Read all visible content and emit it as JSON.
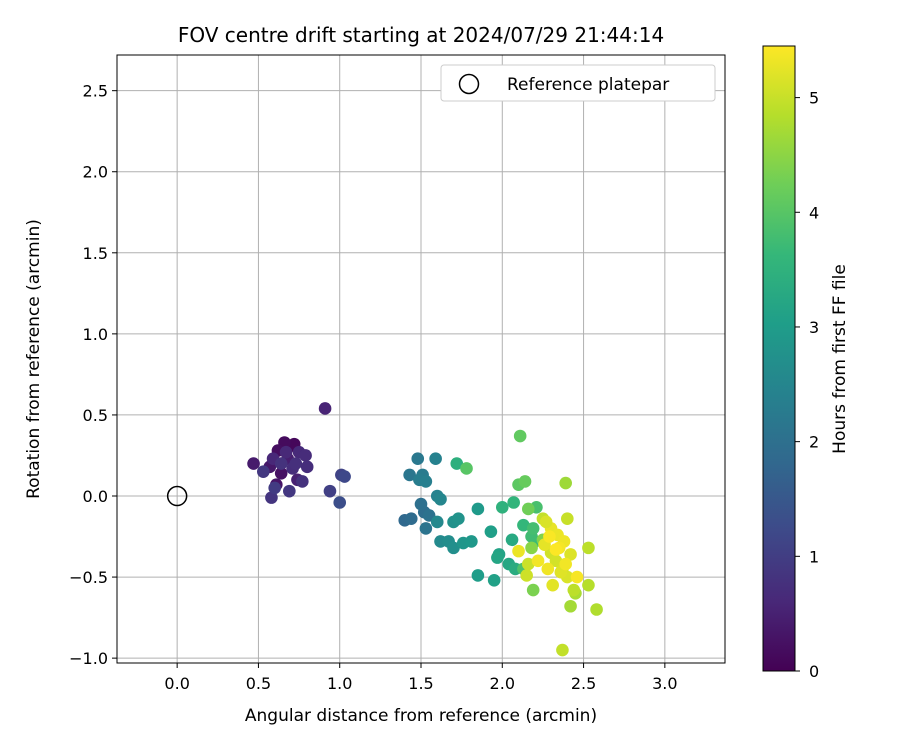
{
  "chart_data": {
    "type": "scatter",
    "title": "FOV centre drift starting at 2024/07/29 21:44:14",
    "xlabel": "Angular distance from reference (arcmin)",
    "ylabel": "Rotation from reference (arcmin)",
    "xlim": [
      -0.37,
      3.37
    ],
    "ylim": [
      -1.03,
      2.72
    ],
    "xticks": [
      0.0,
      0.5,
      1.0,
      1.5,
      2.0,
      2.5,
      3.0
    ],
    "xtick_labels": [
      "0.0",
      "0.5",
      "1.0",
      "1.5",
      "2.0",
      "2.5",
      "3.0"
    ],
    "yticks": [
      -1.0,
      -0.5,
      0.0,
      0.5,
      1.0,
      1.5,
      2.0,
      2.5
    ],
    "ytick_labels": [
      "−1.0",
      "−0.5",
      "0.0",
      "0.5",
      "1.0",
      "1.5",
      "2.0",
      "2.5"
    ],
    "grid": true,
    "legend": {
      "position": "top-right",
      "entries": [
        "Reference platepar"
      ]
    },
    "reference_point": {
      "x": 0.0,
      "y": 0.0
    },
    "colorbar": {
      "label": "Hours from first FF file",
      "range": [
        0,
        5.45
      ],
      "ticks": [
        0,
        1,
        2,
        3,
        4,
        5
      ],
      "tick_labels": [
        "0",
        "1",
        "2",
        "3",
        "4",
        "5"
      ],
      "colormap": "viridis"
    },
    "colormap_stops": [
      "#440154",
      "#482878",
      "#3e4989",
      "#31688e",
      "#26828e",
      "#1f9e89",
      "#35b779",
      "#6ece58",
      "#b5de2b",
      "#fde725"
    ],
    "points": [
      {
        "x": 0.7,
        "y": 0.31,
        "h": 0.05
      },
      {
        "x": 0.72,
        "y": 0.32,
        "h": 0.1
      },
      {
        "x": 0.66,
        "y": 0.33,
        "h": 0.15
      },
      {
        "x": 0.62,
        "y": 0.28,
        "h": 0.2
      },
      {
        "x": 0.64,
        "y": 0.14,
        "h": 0.25
      },
      {
        "x": 0.61,
        "y": 0.07,
        "h": 0.3
      },
      {
        "x": 0.57,
        "y": 0.18,
        "h": 0.35
      },
      {
        "x": 0.47,
        "y": 0.2,
        "h": 0.4
      },
      {
        "x": 0.68,
        "y": 0.23,
        "h": 0.45
      },
      {
        "x": 0.74,
        "y": 0.1,
        "h": 0.5
      },
      {
        "x": 0.91,
        "y": 0.54,
        "h": 0.55
      },
      {
        "x": 0.59,
        "y": 0.23,
        "h": 0.6
      },
      {
        "x": 0.67,
        "y": 0.27,
        "h": 0.62
      },
      {
        "x": 0.75,
        "y": 0.27,
        "h": 0.65
      },
      {
        "x": 0.79,
        "y": 0.25,
        "h": 0.68
      },
      {
        "x": 0.8,
        "y": 0.18,
        "h": 0.7
      },
      {
        "x": 0.71,
        "y": 0.17,
        "h": 0.72
      },
      {
        "x": 0.73,
        "y": 0.2,
        "h": 0.75
      },
      {
        "x": 0.77,
        "y": 0.09,
        "h": 0.78
      },
      {
        "x": 0.64,
        "y": 0.2,
        "h": 0.8
      },
      {
        "x": 0.58,
        "y": -0.01,
        "h": 0.85
      },
      {
        "x": 0.69,
        "y": 0.03,
        "h": 0.88
      },
      {
        "x": 0.53,
        "y": 0.15,
        "h": 0.9
      },
      {
        "x": 0.6,
        "y": 0.05,
        "h": 0.95
      },
      {
        "x": 0.94,
        "y": 0.03,
        "h": 1.05
      },
      {
        "x": 1.01,
        "y": 0.13,
        "h": 1.1
      },
      {
        "x": 1.03,
        "y": 0.12,
        "h": 1.2
      },
      {
        "x": 1.0,
        "y": -0.04,
        "h": 1.3
      },
      {
        "x": 1.4,
        "y": -0.15,
        "h": 1.85
      },
      {
        "x": 1.44,
        "y": -0.14,
        "h": 1.9
      },
      {
        "x": 1.52,
        "y": -0.1,
        "h": 1.95
      },
      {
        "x": 1.5,
        "y": -0.05,
        "h": 2.0
      },
      {
        "x": 1.55,
        "y": -0.12,
        "h": 2.05
      },
      {
        "x": 1.53,
        "y": -0.2,
        "h": 2.1
      },
      {
        "x": 1.43,
        "y": 0.13,
        "h": 2.15
      },
      {
        "x": 1.48,
        "y": 0.23,
        "h": 2.2
      },
      {
        "x": 1.51,
        "y": 0.13,
        "h": 2.25
      },
      {
        "x": 1.49,
        "y": 0.1,
        "h": 2.3
      },
      {
        "x": 1.53,
        "y": 0.09,
        "h": 2.35
      },
      {
        "x": 1.59,
        "y": 0.23,
        "h": 2.4
      },
      {
        "x": 1.6,
        "y": 0.0,
        "h": 2.45
      },
      {
        "x": 1.62,
        "y": -0.02,
        "h": 2.5
      },
      {
        "x": 1.6,
        "y": -0.16,
        "h": 2.55
      },
      {
        "x": 1.62,
        "y": -0.28,
        "h": 2.6
      },
      {
        "x": 1.67,
        "y": -0.28,
        "h": 2.65
      },
      {
        "x": 1.7,
        "y": -0.32,
        "h": 2.7
      },
      {
        "x": 1.7,
        "y": -0.16,
        "h": 2.75
      },
      {
        "x": 1.73,
        "y": -0.14,
        "h": 2.8
      },
      {
        "x": 1.76,
        "y": -0.29,
        "h": 2.85
      },
      {
        "x": 1.81,
        "y": -0.28,
        "h": 2.9
      },
      {
        "x": 1.85,
        "y": -0.08,
        "h": 2.95
      },
      {
        "x": 1.85,
        "y": -0.49,
        "h": 3.0
      },
      {
        "x": 1.93,
        "y": -0.22,
        "h": 3.05
      },
      {
        "x": 1.95,
        "y": -0.52,
        "h": 3.1
      },
      {
        "x": 1.98,
        "y": -0.36,
        "h": 3.15
      },
      {
        "x": 1.97,
        "y": -0.38,
        "h": 3.2
      },
      {
        "x": 2.04,
        "y": -0.42,
        "h": 3.25
      },
      {
        "x": 2.06,
        "y": -0.27,
        "h": 3.3
      },
      {
        "x": 2.08,
        "y": -0.45,
        "h": 3.35
      },
      {
        "x": 1.72,
        "y": 0.2,
        "h": 3.45
      },
      {
        "x": 2.0,
        "y": -0.07,
        "h": 3.5
      },
      {
        "x": 2.07,
        "y": -0.04,
        "h": 3.55
      },
      {
        "x": 2.13,
        "y": -0.18,
        "h": 3.6
      },
      {
        "x": 2.2,
        "y": -0.28,
        "h": 3.7
      },
      {
        "x": 2.18,
        "y": -0.25,
        "h": 3.75
      },
      {
        "x": 2.19,
        "y": -0.2,
        "h": 3.8
      },
      {
        "x": 2.21,
        "y": -0.07,
        "h": 3.85
      },
      {
        "x": 2.13,
        "y": -0.45,
        "h": 3.9
      },
      {
        "x": 1.78,
        "y": 0.17,
        "h": 4.0
      },
      {
        "x": 2.1,
        "y": 0.07,
        "h": 4.05
      },
      {
        "x": 2.11,
        "y": 0.37,
        "h": 4.1
      },
      {
        "x": 2.14,
        "y": 0.09,
        "h": 4.15
      },
      {
        "x": 2.16,
        "y": -0.08,
        "h": 4.25
      },
      {
        "x": 2.19,
        "y": -0.58,
        "h": 4.35
      },
      {
        "x": 2.25,
        "y": -0.27,
        "h": 4.4
      },
      {
        "x": 2.18,
        "y": -0.32,
        "h": 4.45
      },
      {
        "x": 2.39,
        "y": 0.08,
        "h": 4.65
      },
      {
        "x": 2.42,
        "y": -0.68,
        "h": 4.7
      },
      {
        "x": 2.45,
        "y": -0.6,
        "h": 4.75
      },
      {
        "x": 2.58,
        "y": -0.7,
        "h": 4.8
      },
      {
        "x": 2.53,
        "y": -0.55,
        "h": 4.85
      },
      {
        "x": 2.53,
        "y": -0.32,
        "h": 4.9
      },
      {
        "x": 2.37,
        "y": -0.95,
        "h": 4.95
      },
      {
        "x": 2.25,
        "y": -0.14,
        "h": 4.97
      },
      {
        "x": 2.4,
        "y": -0.14,
        "h": 5.0
      },
      {
        "x": 2.16,
        "y": -0.42,
        "h": 5.02
      },
      {
        "x": 2.15,
        "y": -0.49,
        "h": 5.05
      },
      {
        "x": 2.3,
        "y": -0.35,
        "h": 5.07
      },
      {
        "x": 2.33,
        "y": -0.4,
        "h": 5.1
      },
      {
        "x": 2.37,
        "y": -0.45,
        "h": 5.12
      },
      {
        "x": 2.4,
        "y": -0.5,
        "h": 5.15
      },
      {
        "x": 2.42,
        "y": -0.36,
        "h": 5.17
      },
      {
        "x": 2.36,
        "y": -0.47,
        "h": 5.2
      },
      {
        "x": 2.31,
        "y": -0.55,
        "h": 5.22
      },
      {
        "x": 2.26,
        "y": -0.3,
        "h": 5.25
      },
      {
        "x": 2.3,
        "y": -0.2,
        "h": 5.27
      },
      {
        "x": 2.34,
        "y": -0.24,
        "h": 5.3
      },
      {
        "x": 2.38,
        "y": -0.28,
        "h": 5.32
      },
      {
        "x": 2.28,
        "y": -0.45,
        "h": 5.34
      },
      {
        "x": 2.22,
        "y": -0.4,
        "h": 5.36
      },
      {
        "x": 2.35,
        "y": -0.32,
        "h": 5.38
      },
      {
        "x": 2.46,
        "y": -0.5,
        "h": 5.4
      },
      {
        "x": 2.29,
        "y": -0.25,
        "h": 5.42
      },
      {
        "x": 2.33,
        "y": -0.33,
        "h": 5.44
      },
      {
        "x": 2.1,
        "y": -0.34,
        "h": 5.3
      },
      {
        "x": 2.39,
        "y": -0.42,
        "h": 5.35
      },
      {
        "x": 2.27,
        "y": -0.16,
        "h": 5.15
      },
      {
        "x": 2.44,
        "y": -0.58,
        "h": 4.9
      }
    ]
  }
}
